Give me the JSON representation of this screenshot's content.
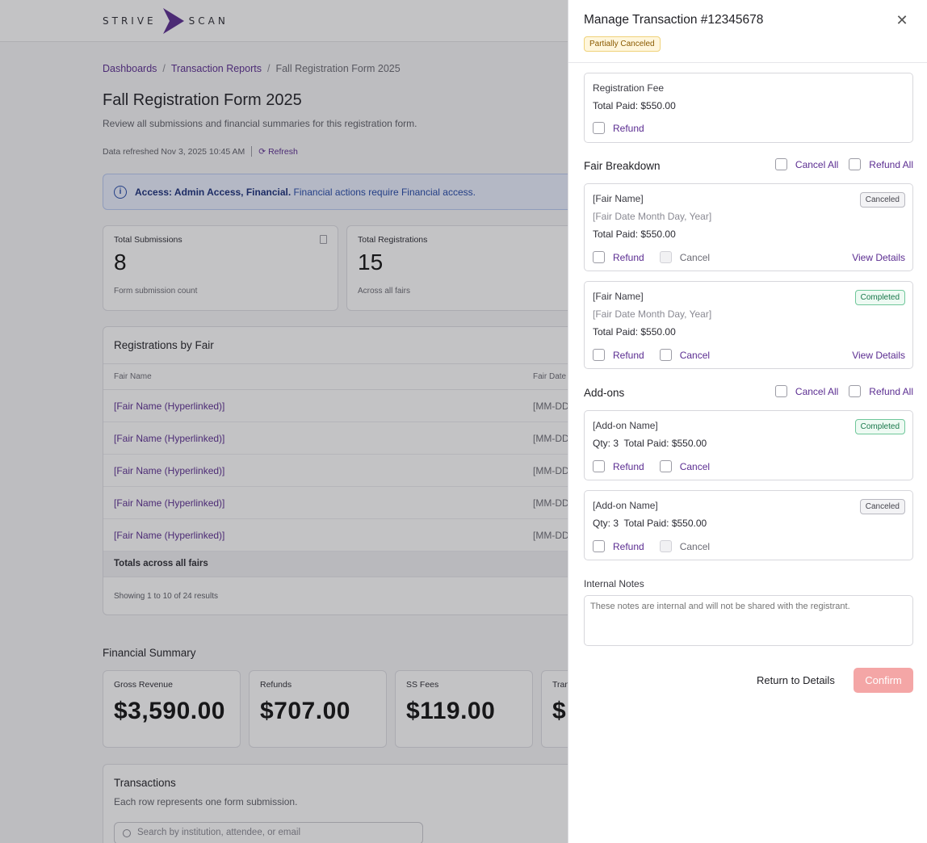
{
  "app": {
    "logo_left": "STRIVE",
    "logo_right": "SCAN"
  },
  "breadcrumb": [
    "Dashboards",
    "Transaction Reports",
    "Fall Registration Form 2025"
  ],
  "page": {
    "title": "Fall Registration Form 2025",
    "subtitle": "Review all submissions and financial summaries for this registration form.",
    "refreshed": "Data refreshed Nov 3, 2025 10:45 AM",
    "refresh_label": "Refresh"
  },
  "access": {
    "bold": "Access: Admin Access, Financial.",
    "text": "Financial actions require Financial access."
  },
  "stats": [
    {
      "label": "Total Submissions",
      "value": "8",
      "foot": "Form submission count"
    },
    {
      "label": "Total Registrations",
      "value": "15",
      "foot": "Across all fairs"
    }
  ],
  "registrations": {
    "title": "Registrations by Fair",
    "col_name": "Fair Name",
    "col_date": "Fair Date",
    "rows": [
      {
        "name": "[Fair Name (Hyperlinked)]",
        "date": "[MM-DD"
      },
      {
        "name": "[Fair Name (Hyperlinked)]",
        "date": "[MM-DD"
      },
      {
        "name": "[Fair Name (Hyperlinked)]",
        "date": "[MM-DD"
      },
      {
        "name": "[Fair Name (Hyperlinked)]",
        "date": "[MM-DD"
      },
      {
        "name": "[Fair Name (Hyperlinked)]",
        "date": "[MM-DD"
      }
    ],
    "totals": "Totals across all fairs",
    "showing": "Showing 1 to 10 of 24 results"
  },
  "financial": {
    "title": "Financial Summary",
    "cards": [
      {
        "label": "Gross Revenue",
        "value": "$3,590.00"
      },
      {
        "label": "Refunds",
        "value": "$707.00"
      },
      {
        "label": "SS Fees",
        "value": "$119.00"
      },
      {
        "label": "Tran",
        "value": "$"
      }
    ]
  },
  "transactions": {
    "title": "Transactions",
    "subtitle": "Each row represents one form submission.",
    "search_placeholder": "Search by institution, attendee, or email"
  },
  "drawer": {
    "title": "Manage Transaction #12345678",
    "status": "Partially Canceled",
    "registration_fee": {
      "name": "Registration Fee",
      "total": "Total Paid: $550.00",
      "refund": "Refund"
    },
    "fair_section": {
      "title": "Fair Breakdown",
      "cancel_all": "Cancel All",
      "refund_all": "Refund All"
    },
    "fairs": [
      {
        "name": "[Fair Name]",
        "date": "[Fair Date Month Day, Year]",
        "total": "Total Paid: $550.00",
        "status": "Canceled",
        "refund": "Refund",
        "cancel": "Cancel",
        "details": "View Details"
      },
      {
        "name": "[Fair Name]",
        "date": "[Fair Date Month Day, Year]",
        "total": "Total Paid: $550.00",
        "status": "Completed",
        "refund": "Refund",
        "cancel": "Cancel",
        "details": "View Details"
      }
    ],
    "addon_section": {
      "title": "Add-ons",
      "cancel_all": "Cancel All",
      "refund_all": "Refund All"
    },
    "addons": [
      {
        "name": "[Add-on Name]",
        "qty_total": "Qty: 3  Total Paid: $550.00",
        "status": "Completed",
        "refund": "Refund",
        "cancel": "Cancel"
      },
      {
        "name": "[Add-on Name]",
        "qty_total": "Qty: 3  Total Paid: $550.00",
        "status": "Canceled",
        "refund": "Refund",
        "cancel": "Cancel"
      }
    ],
    "notes_label": "Internal Notes",
    "notes_placeholder": "These notes are internal and will not be shared with the registrant.",
    "return_label": "Return to Details",
    "confirm_label": "Confirm"
  }
}
